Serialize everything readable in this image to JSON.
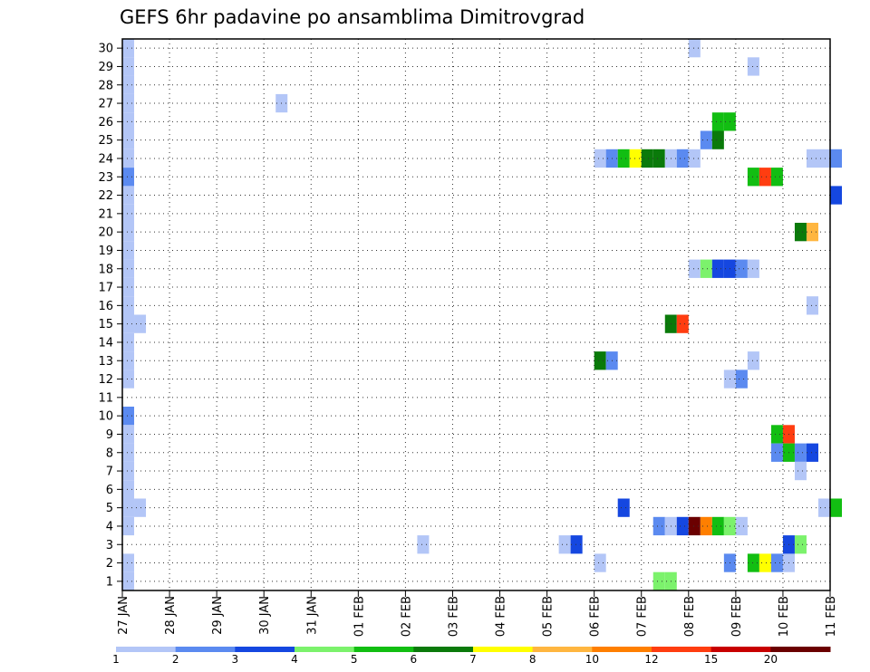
{
  "chart_data": {
    "type": "heatmap",
    "title": "GEFS 6hr padavine po ansamblima Dimitrovgrad",
    "xlabel": "",
    "ylabel": "",
    "x_ticks": [
      "27 JAN",
      "28 JAN",
      "29 JAN",
      "30 JAN",
      "31 JAN",
      "01 FEB",
      "02 FEB",
      "03 FEB",
      "04 FEB",
      "05 FEB",
      "06 FEB",
      "07 FEB",
      "08 FEB",
      "09 FEB",
      "10 FEB",
      "11 FEB"
    ],
    "y_ticks": [
      1,
      2,
      3,
      4,
      5,
      6,
      7,
      8,
      9,
      10,
      11,
      12,
      13,
      14,
      15,
      16,
      17,
      18,
      19,
      20,
      21,
      22,
      23,
      24,
      25,
      26,
      27,
      28,
      29,
      30
    ],
    "time_step_hours": 6,
    "ylim": [
      0.5,
      30.5
    ],
    "grid": true,
    "legend_placement": "bottom",
    "colorbar": {
      "labels": [
        "1",
        "2",
        "3",
        "4",
        "5",
        "6",
        "7",
        "8",
        "10",
        "12",
        "15",
        "20"
      ],
      "colors": [
        "#b3c6f7",
        "#5b8af0",
        "#1547e0",
        "#7cf26c",
        "#12be12",
        "#0a7a0a",
        "#ffff00",
        "#ffb640",
        "#ff7f00",
        "#ff3d10",
        "#c80000",
        "#6b0000"
      ]
    },
    "series_note": "cells: [member, time_step_index_from_27_JAN_00Z, bin_index]",
    "cells": [
      [
        30,
        0,
        0
      ],
      [
        29,
        0,
        0
      ],
      [
        28,
        0,
        0
      ],
      [
        27,
        0,
        0
      ],
      [
        26,
        0,
        0
      ],
      [
        25,
        0,
        0
      ],
      [
        24,
        0,
        0
      ],
      [
        23,
        0,
        1
      ],
      [
        22,
        0,
        0
      ],
      [
        21,
        0,
        0
      ],
      [
        20,
        0,
        0
      ],
      [
        19,
        0,
        0
      ],
      [
        18,
        0,
        0
      ],
      [
        17,
        0,
        0
      ],
      [
        16,
        0,
        0
      ],
      [
        15,
        0,
        0
      ],
      [
        14,
        0,
        0
      ],
      [
        13,
        0,
        0
      ],
      [
        12,
        0,
        0
      ],
      [
        10,
        0,
        1
      ],
      [
        9,
        0,
        0
      ],
      [
        8,
        0,
        0
      ],
      [
        7,
        0,
        0
      ],
      [
        6,
        0,
        0
      ],
      [
        5,
        0,
        0
      ],
      [
        4,
        0,
        0
      ],
      [
        2,
        0,
        0
      ],
      [
        1,
        0,
        0
      ],
      [
        15,
        1,
        0
      ],
      [
        5,
        1,
        0
      ],
      [
        27,
        13,
        0
      ],
      [
        3,
        25,
        0
      ],
      [
        3,
        37,
        0
      ],
      [
        3,
        38,
        2
      ],
      [
        24,
        40,
        0
      ],
      [
        24,
        41,
        1
      ],
      [
        24,
        42,
        4
      ],
      [
        24,
        43,
        6
      ],
      [
        24,
        44,
        5
      ],
      [
        24,
        45,
        5
      ],
      [
        24,
        46,
        0
      ],
      [
        24,
        47,
        1
      ],
      [
        24,
        48,
        0
      ],
      [
        13,
        40,
        5
      ],
      [
        13,
        41,
        1
      ],
      [
        2,
        40,
        0
      ],
      [
        5,
        42,
        2
      ],
      [
        4,
        45,
        1
      ],
      [
        4,
        46,
        0
      ],
      [
        4,
        47,
        2
      ],
      [
        4,
        48,
        11
      ],
      [
        4,
        49,
        8
      ],
      [
        4,
        50,
        4
      ],
      [
        4,
        51,
        3
      ],
      [
        4,
        52,
        0
      ],
      [
        1,
        45,
        3
      ],
      [
        1,
        46,
        3
      ],
      [
        15,
        46,
        5
      ],
      [
        15,
        47,
        9
      ],
      [
        30,
        48,
        0
      ],
      [
        25,
        49,
        1
      ],
      [
        25,
        50,
        5
      ],
      [
        26,
        50,
        4
      ],
      [
        26,
        51,
        4
      ],
      [
        18,
        48,
        0
      ],
      [
        18,
        49,
        3
      ],
      [
        18,
        50,
        2
      ],
      [
        18,
        51,
        2
      ],
      [
        18,
        52,
        1
      ],
      [
        18,
        53,
        0
      ],
      [
        29,
        53,
        0
      ],
      [
        23,
        53,
        4
      ],
      [
        23,
        54,
        9
      ],
      [
        23,
        55,
        4
      ],
      [
        13,
        53,
        0
      ],
      [
        12,
        51,
        0
      ],
      [
        12,
        52,
        1
      ],
      [
        2,
        51,
        1
      ],
      [
        2,
        53,
        4
      ],
      [
        2,
        54,
        6
      ],
      [
        2,
        55,
        1
      ],
      [
        2,
        56,
        0
      ],
      [
        9,
        55,
        4
      ],
      [
        9,
        56,
        9
      ],
      [
        8,
        55,
        1
      ],
      [
        8,
        56,
        4
      ],
      [
        8,
        57,
        1
      ],
      [
        8,
        58,
        2
      ],
      [
        7,
        57,
        0
      ],
      [
        20,
        57,
        5
      ],
      [
        20,
        58,
        7
      ],
      [
        3,
        56,
        2
      ],
      [
        3,
        57,
        3
      ],
      [
        16,
        58,
        0
      ],
      [
        24,
        58,
        0
      ],
      [
        24,
        59,
        0
      ],
      [
        24,
        60,
        1
      ],
      [
        22,
        60,
        2
      ],
      [
        5,
        59,
        0
      ],
      [
        5,
        60,
        4
      ]
    ]
  }
}
